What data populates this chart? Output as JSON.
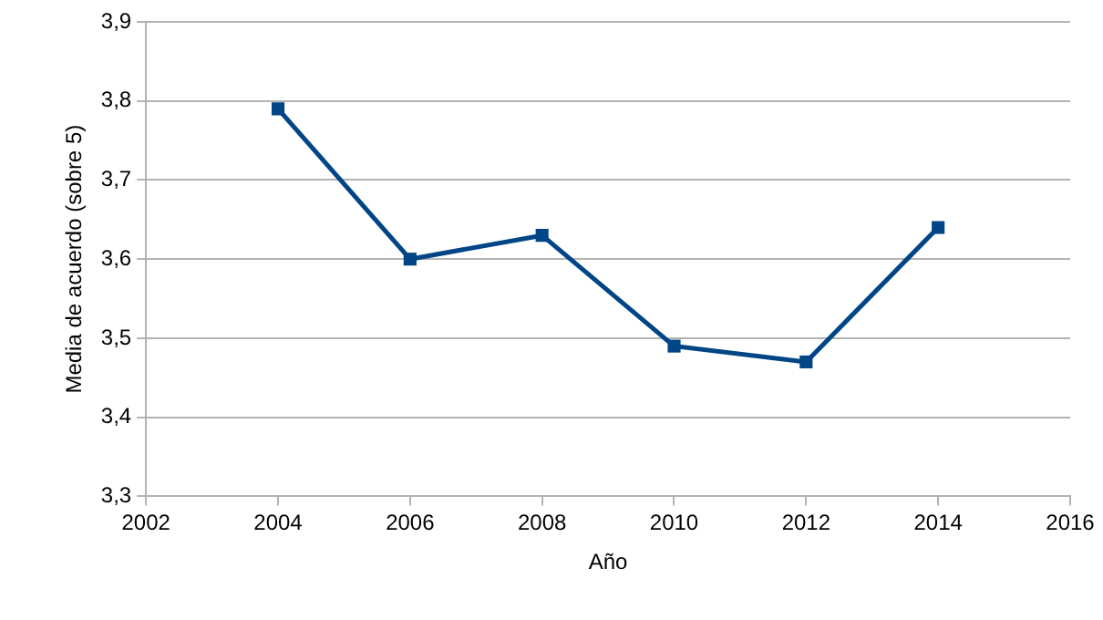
{
  "chart_data": {
    "type": "line",
    "xlabel": "Año",
    "ylabel": "Media de acuerdo (sobre 5)",
    "x": [
      2004,
      2006,
      2008,
      2010,
      2012,
      2014
    ],
    "series": [
      {
        "color": "#004586",
        "values": [
          3.79,
          3.6,
          3.63,
          3.49,
          3.47,
          3.64
        ]
      }
    ],
    "xlim": [
      2002,
      2016
    ],
    "xticks": [
      2002,
      2004,
      2006,
      2008,
      2010,
      2012,
      2014,
      2016
    ],
    "ylim": [
      3.3,
      3.9
    ],
    "yticks": [
      {
        "value": 3.3,
        "label": "3,3"
      },
      {
        "value": 3.4,
        "label": "3,4"
      },
      {
        "value": 3.5,
        "label": "3,5"
      },
      {
        "value": 3.6,
        "label": "3,6"
      },
      {
        "value": 3.7,
        "label": "3,7"
      },
      {
        "value": 3.8,
        "label": "3,8"
      },
      {
        "value": 3.9,
        "label": "3,9"
      }
    ],
    "grid": "y",
    "legend": false,
    "marker": "square",
    "line_style": "solid"
  }
}
